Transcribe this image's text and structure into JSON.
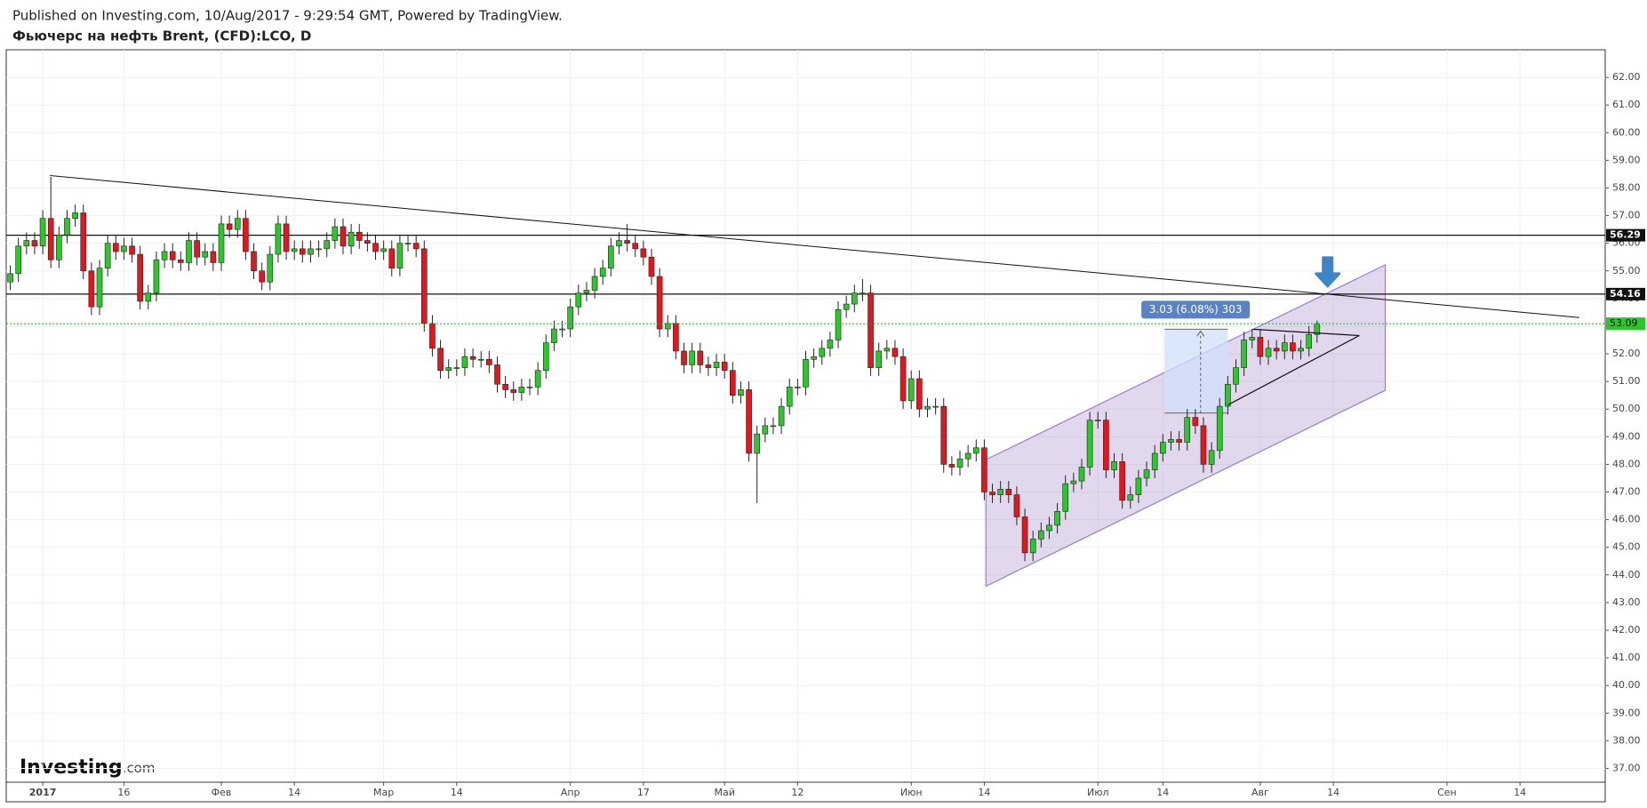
{
  "chart_data": {
    "type": "candlestick",
    "title": "Published on Investing.com, 10/Aug/2017 - 9:29:54 GMT, Powered by TradingView.",
    "subtitle": "Фьючерс на нефть Brent, (CFD):LCO, D",
    "logo": {
      "main": "Investing",
      "suffix": ".com"
    },
    "up_color": "#2bc72b",
    "down_color": "#e3161d",
    "open": [
      54.6,
      54.9,
      55.9,
      56.1,
      55.9,
      56.9,
      55.4,
      56.3,
      56.9,
      57.1,
      55.0,
      53.7,
      55.1,
      56.0,
      55.7,
      55.9,
      55.6,
      53.9,
      54.2,
      55.4,
      55.7,
      55.4,
      55.3,
      56.1,
      55.5,
      55.7,
      55.3,
      56.7,
      56.5,
      56.9,
      55.7,
      55.0,
      54.6,
      55.6,
      56.7,
      55.7,
      55.8,
      55.6,
      55.8,
      55.8,
      56.1,
      56.6,
      55.9,
      56.4,
      56.1,
      56.0,
      55.7,
      55.8,
      55.1,
      56.0,
      56.0,
      55.8,
      53.1,
      52.2,
      51.4,
      51.5,
      51.5,
      51.9,
      51.8,
      51.8,
      51.6,
      50.9,
      50.7,
      50.6,
      50.8,
      50.8,
      51.4,
      52.4,
      52.9,
      52.9,
      53.7,
      54.2,
      54.3,
      54.8,
      55.1,
      55.9,
      56.1,
      56.0,
      55.8,
      55.5,
      54.8,
      52.9,
      53.1,
      52.1,
      51.6,
      52.1,
      51.6,
      51.5,
      51.7,
      51.4,
      50.5,
      50.7,
      48.4,
      49.1,
      49.4,
      49.4,
      50.1,
      50.8,
      50.8,
      51.8,
      51.9,
      52.2,
      52.5,
      53.6,
      53.8,
      54.2,
      54.2,
      51.5,
      52.1,
      52.2,
      51.9,
      50.3,
      51.1,
      50.0,
      50.1,
      50.1,
      48.0,
      47.9,
      48.2,
      48.4,
      48.6,
      47.0,
      46.9,
      47.1,
      46.9,
      46.1,
      44.8,
      45.3,
      45.6,
      45.8,
      46.3,
      47.3,
      47.4,
      47.9,
      49.6,
      49.6,
      47.8,
      48.1,
      46.7,
      46.9,
      47.5,
      47.8,
      48.4,
      48.8,
      48.9,
      48.8,
      49.7,
      49.4,
      48.0,
      48.5,
      50.1,
      50.9,
      51.5,
      52.5,
      52.6,
      51.9,
      52.2,
      52.1,
      52.4,
      52.1,
      52.2,
      52.7
    ],
    "high": [
      55.2,
      56.2,
      56.4,
      56.4,
      57.2,
      58.4,
      56.6,
      57.2,
      57.4,
      57.4,
      55.3,
      55.4,
      56.3,
      56.3,
      56.2,
      56.2,
      55.9,
      54.5,
      55.7,
      56.0,
      56.0,
      55.7,
      56.4,
      56.4,
      56.0,
      56.0,
      57.0,
      57.0,
      57.2,
      57.2,
      56.0,
      55.3,
      55.9,
      57.0,
      57.0,
      56.1,
      56.1,
      56.1,
      56.1,
      56.4,
      56.9,
      56.9,
      56.7,
      56.7,
      56.4,
      56.3,
      56.1,
      56.1,
      56.3,
      56.3,
      56.3,
      56.1,
      53.4,
      52.5,
      51.8,
      51.8,
      52.2,
      52.2,
      52.1,
      52.1,
      51.9,
      51.2,
      51.0,
      51.1,
      51.1,
      51.7,
      52.7,
      53.2,
      53.2,
      54.0,
      54.5,
      54.6,
      55.1,
      55.4,
      56.2,
      56.4,
      56.7,
      56.3,
      56.1,
      55.8,
      55.1,
      53.4,
      53.4,
      52.4,
      52.4,
      52.4,
      51.9,
      52.0,
      52.0,
      51.7,
      51.0,
      51.0,
      49.4,
      49.7,
      49.7,
      50.4,
      51.1,
      51.1,
      52.1,
      52.2,
      52.5,
      52.8,
      53.9,
      54.1,
      54.5,
      54.7,
      54.5,
      52.4,
      52.5,
      52.5,
      52.2,
      51.4,
      51.4,
      50.4,
      50.4,
      50.4,
      48.3,
      48.5,
      48.7,
      48.9,
      48.9,
      47.3,
      47.4,
      47.4,
      47.2,
      46.4,
      45.6,
      45.9,
      46.1,
      46.6,
      47.6,
      47.7,
      48.2,
      49.9,
      49.9,
      49.9,
      48.4,
      48.4,
      47.2,
      47.8,
      48.1,
      48.7,
      49.1,
      49.2,
      49.2,
      50.0,
      50.0,
      49.7,
      48.8,
      50.4,
      51.2,
      51.8,
      52.8,
      52.9,
      52.9,
      52.5,
      52.5,
      52.7,
      52.7,
      52.5,
      53.0,
      53.2
    ],
    "low": [
      54.3,
      54.6,
      55.6,
      55.6,
      55.6,
      55.1,
      55.1,
      56.0,
      56.6,
      54.7,
      53.4,
      53.4,
      54.8,
      55.4,
      55.4,
      55.3,
      53.6,
      53.6,
      53.9,
      55.1,
      55.1,
      55.0,
      55.0,
      55.2,
      55.2,
      55.0,
      55.0,
      56.2,
      56.2,
      55.4,
      54.7,
      54.3,
      54.3,
      55.3,
      55.4,
      55.4,
      55.3,
      55.3,
      55.5,
      55.5,
      55.8,
      55.6,
      55.6,
      55.8,
      55.7,
      55.4,
      55.4,
      54.8,
      54.8,
      55.7,
      55.5,
      52.8,
      51.9,
      51.1,
      51.1,
      51.2,
      51.2,
      51.5,
      51.5,
      51.3,
      50.6,
      50.4,
      50.3,
      50.3,
      50.5,
      50.5,
      51.1,
      52.1,
      52.6,
      52.6,
      53.4,
      53.9,
      54.0,
      54.5,
      54.8,
      55.6,
      55.7,
      55.5,
      55.2,
      54.5,
      52.6,
      52.6,
      51.8,
      51.3,
      51.3,
      51.3,
      51.2,
      51.2,
      51.1,
      50.2,
      50.2,
      48.1,
      46.6,
      48.8,
      49.1,
      49.1,
      49.8,
      50.5,
      50.5,
      51.5,
      51.6,
      51.9,
      52.2,
      53.3,
      53.5,
      53.9,
      51.2,
      51.2,
      51.8,
      51.6,
      50.0,
      50.0,
      49.7,
      49.7,
      49.8,
      47.7,
      47.6,
      47.6,
      47.9,
      48.1,
      46.7,
      46.6,
      46.6,
      46.6,
      45.8,
      44.5,
      44.5,
      45.0,
      45.3,
      45.5,
      46.0,
      47.0,
      47.1,
      47.6,
      49.3,
      47.5,
      47.5,
      46.4,
      46.4,
      46.6,
      47.2,
      47.5,
      48.1,
      48.5,
      48.5,
      48.5,
      49.1,
      47.7,
      47.7,
      48.2,
      49.8,
      50.6,
      51.2,
      52.2,
      51.6,
      51.6,
      51.8,
      51.8,
      51.8,
      51.8,
      51.9,
      52.4
    ],
    "close": [
      54.9,
      55.9,
      56.1,
      55.9,
      56.9,
      55.4,
      56.3,
      56.9,
      57.1,
      55.0,
      53.7,
      55.1,
      56.0,
      55.7,
      55.9,
      55.6,
      53.9,
      54.2,
      55.4,
      55.7,
      55.4,
      55.3,
      56.1,
      55.5,
      55.7,
      55.3,
      56.7,
      56.5,
      56.9,
      55.7,
      55.0,
      54.6,
      55.6,
      56.7,
      55.7,
      55.8,
      55.6,
      55.8,
      55.8,
      56.1,
      56.6,
      55.9,
      56.4,
      56.1,
      56.0,
      55.7,
      55.8,
      55.1,
      56.0,
      56.0,
      55.8,
      53.1,
      52.2,
      51.4,
      51.5,
      51.5,
      51.9,
      51.8,
      51.8,
      51.6,
      50.9,
      50.7,
      50.6,
      50.8,
      50.8,
      51.4,
      52.4,
      52.9,
      52.9,
      53.7,
      54.2,
      54.3,
      54.8,
      55.1,
      55.9,
      56.1,
      56.0,
      55.8,
      55.5,
      54.8,
      52.9,
      53.1,
      52.1,
      51.6,
      52.1,
      51.6,
      51.5,
      51.7,
      51.4,
      50.5,
      50.7,
      48.4,
      49.1,
      49.4,
      49.4,
      50.1,
      50.8,
      50.8,
      51.8,
      51.9,
      52.2,
      52.5,
      53.6,
      53.8,
      54.2,
      54.2,
      51.5,
      52.1,
      52.2,
      51.9,
      50.3,
      51.1,
      50.0,
      50.1,
      50.1,
      48.0,
      47.9,
      48.2,
      48.4,
      48.6,
      47.0,
      46.9,
      47.1,
      46.9,
      46.1,
      44.8,
      45.3,
      45.6,
      45.8,
      46.3,
      47.3,
      47.4,
      47.9,
      49.6,
      49.6,
      47.8,
      48.1,
      46.7,
      46.9,
      47.5,
      47.8,
      48.4,
      48.8,
      48.9,
      48.8,
      49.7,
      49.4,
      48.0,
      48.5,
      50.1,
      50.9,
      51.5,
      52.5,
      52.6,
      51.9,
      52.2,
      52.1,
      52.4,
      52.1,
      52.2,
      52.7,
      53.09
    ],
    "xlim": [
      -0.5,
      196.5
    ],
    "xticks": [
      {
        "value": 4,
        "label": "2017"
      },
      {
        "value": 14,
        "label": "16"
      },
      {
        "value": 26,
        "label": "Фев"
      },
      {
        "value": 35,
        "label": "14"
      },
      {
        "value": 46,
        "label": "Мар"
      },
      {
        "value": 55,
        "label": "14"
      },
      {
        "value": 69,
        "label": "Апр"
      },
      {
        "value": 78,
        "label": "17"
      },
      {
        "value": 88,
        "label": "Май"
      },
      {
        "value": 97,
        "label": "12"
      },
      {
        "value": 111,
        "label": "Июн"
      },
      {
        "value": 120,
        "label": "14"
      },
      {
        "value": 134,
        "label": "Июл"
      },
      {
        "value": 142,
        "label": "14"
      },
      {
        "value": 154,
        "label": "Авг"
      },
      {
        "value": 163,
        "label": "14"
      },
      {
        "value": 177,
        "label": "Сен"
      },
      {
        "value": 186,
        "label": "14"
      }
    ],
    "ylim": [
      36.5,
      63.0
    ],
    "yticks": [
      {
        "value": 37,
        "label": "37.00"
      },
      {
        "value": 38,
        "label": "38.00"
      },
      {
        "value": 39,
        "label": "39.00"
      },
      {
        "value": 40,
        "label": "40.00"
      },
      {
        "value": 41,
        "label": "41.00"
      },
      {
        "value": 42,
        "label": "42.00"
      },
      {
        "value": 43,
        "label": "43.00"
      },
      {
        "value": 44,
        "label": "44.00"
      },
      {
        "value": 45,
        "label": "45.00"
      },
      {
        "value": 46,
        "label": "46.00"
      },
      {
        "value": 47,
        "label": "47.00"
      },
      {
        "value": 48,
        "label": "48.00"
      },
      {
        "value": 49,
        "label": "49.00"
      },
      {
        "value": 50,
        "label": "50.00"
      },
      {
        "value": 51,
        "label": "51.00"
      },
      {
        "value": 52,
        "label": "52.00"
      },
      {
        "value": 53,
        "label": "53.00"
      },
      {
        "value": 54,
        "label": "54.00"
      },
      {
        "value": 55,
        "label": "55.00"
      },
      {
        "value": 56,
        "label": "56.00"
      },
      {
        "value": 57,
        "label": "57.00"
      },
      {
        "value": 58,
        "label": "58.00"
      },
      {
        "value": 59,
        "label": "59.00"
      },
      {
        "value": 60,
        "label": "60.00"
      },
      {
        "value": 61,
        "label": "61.00"
      },
      {
        "value": 62,
        "label": "62.00"
      }
    ],
    "grid": true,
    "hlines": [
      56.29,
      54.16
    ],
    "trendline": {
      "x": [
        4.9,
        193.3
      ],
      "y": [
        58.45,
        53.31
      ]
    },
    "channel": {
      "x": [
        120.2,
        169.4,
        169.4,
        120.2
      ],
      "y": [
        48.17,
        55.22,
        50.68,
        43.59
      ],
      "color": "#9b7fc8"
    },
    "triangle": {
      "x": [
        153.1,
        166.2,
        150.0
      ],
      "y": [
        52.89,
        52.66,
        50.15
      ]
    },
    "measure": {
      "x": [
        142.2,
        150.0
      ],
      "y": [
        49.86,
        52.89
      ],
      "label": "3.03 (6.08%) 303"
    },
    "arrow": {
      "x": 162.3,
      "y": 54.45,
      "color": "#3d85c6"
    }
  }
}
